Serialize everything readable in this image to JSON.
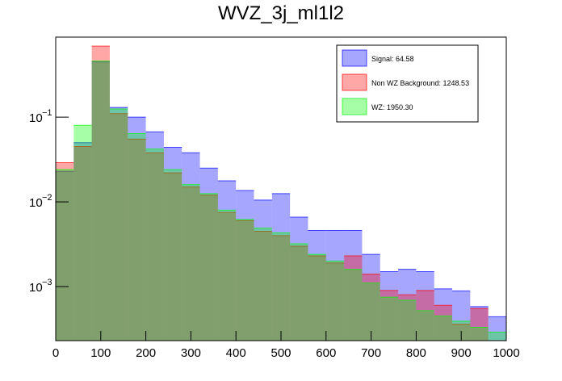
{
  "chart_data": {
    "type": "histogram",
    "title": "WVZ_3j_ml1l2",
    "bins": [
      0,
      40,
      80,
      120,
      160,
      200,
      240,
      280,
      320,
      360,
      400,
      440,
      480,
      520,
      560,
      600,
      640,
      680,
      720,
      760,
      800,
      840,
      880,
      920,
      960,
      1000
    ],
    "series": [
      {
        "name": "Signal: 64.58",
        "color": "#0000ff",
        "values": [
          0.023,
          0.05,
          0.45,
          0.13,
          0.1,
          0.067,
          0.044,
          0.038,
          0.025,
          0.0177,
          0.0136,
          0.0105,
          0.0125,
          0.0066,
          0.0046,
          0.0046,
          0.0046,
          0.0024,
          0.0015,
          0.0016,
          0.0015,
          0.00094,
          0.00089,
          0.00058,
          0.00044
        ]
      },
      {
        "name": "Non WZ Background: 1248.53",
        "color": "#ff0000",
        "values": [
          0.029,
          0.045,
          0.69,
          0.11,
          0.055,
          0.038,
          0.022,
          0.015,
          0.012,
          0.0075,
          0.006,
          0.0045,
          0.004,
          0.003,
          0.0023,
          0.0019,
          0.0023,
          0.0014,
          0.0009,
          0.0008,
          0.0009,
          0.0006,
          0.00036,
          0.00055,
          0.0002
        ]
      },
      {
        "name": "WZ: 1950.30",
        "color": "#00ff00",
        "values": [
          0.024,
          0.08,
          0.46,
          0.125,
          0.064,
          0.042,
          0.024,
          0.016,
          0.0125,
          0.008,
          0.0062,
          0.0049,
          0.0043,
          0.0032,
          0.0024,
          0.002,
          0.0016,
          0.0011,
          0.00075,
          0.00069,
          0.00052,
          0.00045,
          0.00039,
          0.00033,
          0.00029
        ]
      }
    ],
    "xlim": [
      0,
      1000
    ],
    "xticks": [
      0,
      100,
      200,
      300,
      400,
      500,
      600,
      700,
      800,
      900,
      1000
    ],
    "ylim": [
      0.00023,
      0.88
    ],
    "log_y": true,
    "yticks": [
      {
        "value": 0.001,
        "label": "10",
        "exponent": "−3"
      },
      {
        "value": 0.01,
        "label": "10",
        "exponent": "−2"
      },
      {
        "value": 0.1,
        "label": "10",
        "exponent": "−1"
      }
    ],
    "legend": "top-right"
  }
}
